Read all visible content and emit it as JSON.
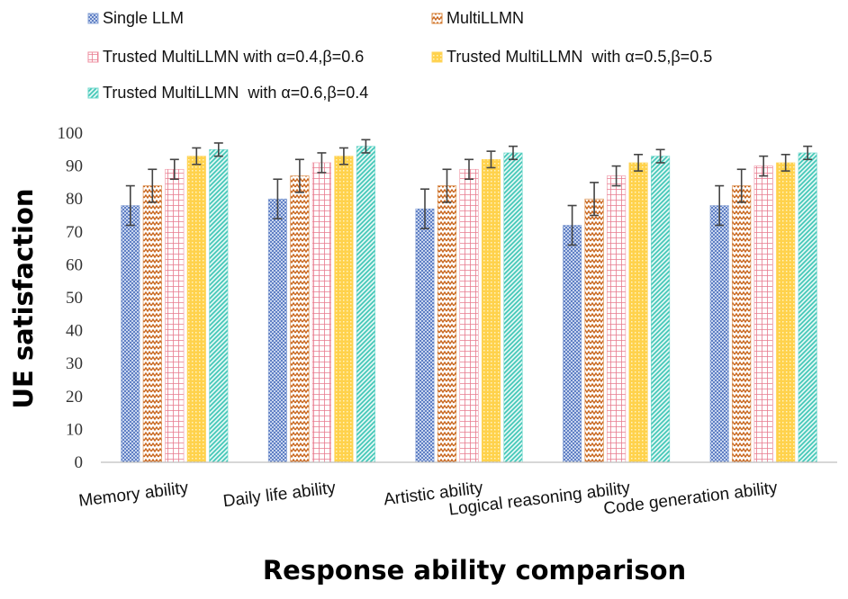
{
  "chart_data": {
    "type": "bar",
    "title": "",
    "xlabel": "Response ability comparison",
    "ylabel": "UE satisfaction",
    "ylim": [
      0,
      100
    ],
    "yticks": [
      0,
      10,
      20,
      30,
      40,
      50,
      60,
      70,
      80,
      90,
      100
    ],
    "grid": false,
    "legend_position": "top",
    "categories": [
      "Memory ability",
      "Daily life ability",
      "Artistic ability",
      "Logical reasoning ability",
      "Code generation ability"
    ],
    "series": [
      {
        "name": "Single LLM",
        "color": "#8fa8d8",
        "pattern": "dots-blue",
        "values": [
          78,
          80,
          77,
          72,
          78
        ],
        "errors": [
          6,
          6,
          6,
          6,
          6
        ]
      },
      {
        "name": "MultiLLMN",
        "color": "#d9843a",
        "pattern": "zigzag-orange",
        "values": [
          84,
          87,
          84,
          80,
          84
        ],
        "errors": [
          5,
          5,
          5,
          5,
          5
        ]
      },
      {
        "name": "Trusted MultiLLMN with α=0.4,β=0.6",
        "color": "#ef8fa0",
        "pattern": "grid-pink",
        "values": [
          89,
          91,
          89,
          87,
          90
        ],
        "errors": [
          3,
          3,
          3,
          3,
          3
        ]
      },
      {
        "name": "Trusted MultiLLMN  with α=0.5,β=0.5",
        "color": "#ffd45e",
        "pattern": "dots-yellow",
        "values": [
          93,
          93,
          92,
          91,
          91
        ],
        "errors": [
          2.5,
          2.5,
          2.5,
          2.5,
          2.5
        ]
      },
      {
        "name": "Trusted MultiLLMN  with α=0.6,β=0.4",
        "color": "#6fd8cc",
        "pattern": "diag-teal",
        "values": [
          95,
          96,
          94,
          93,
          94
        ],
        "errors": [
          2,
          2,
          2,
          2,
          2
        ]
      }
    ]
  }
}
